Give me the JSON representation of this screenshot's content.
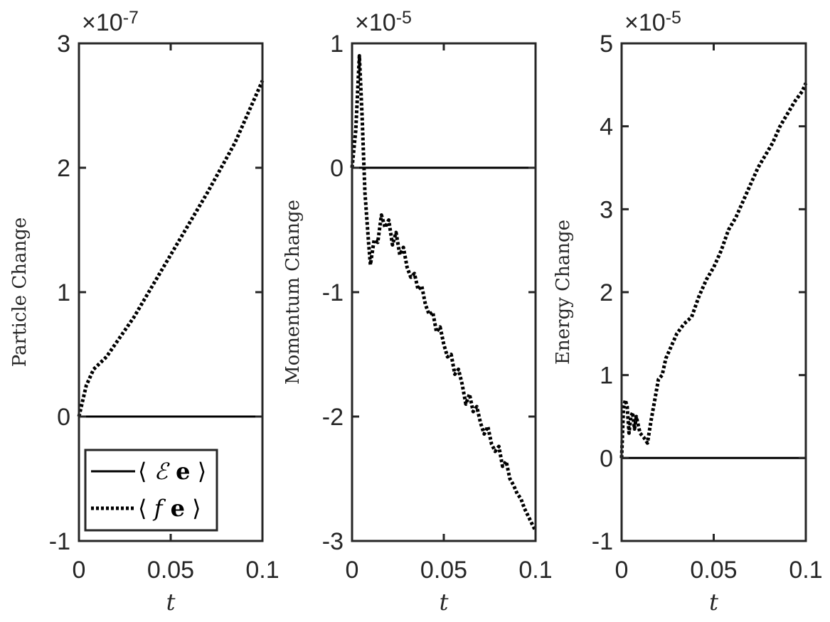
{
  "chart_data": [
    {
      "type": "line",
      "ylabel": "Particle Change",
      "xlabel": "t",
      "exponent": {
        "base": "×10",
        "power": "-7"
      },
      "xlim": [
        0,
        0.1
      ],
      "ylim": [
        -1,
        3
      ],
      "xticks": [
        "0",
        "0.05",
        "0.1"
      ],
      "yticks": [
        "-1",
        "0",
        "1",
        "2",
        "3"
      ],
      "ytick_values": [
        -1,
        0,
        1,
        2,
        3
      ],
      "xtick_values": [
        0,
        0.05,
        0.1
      ],
      "legend": {
        "placement": "bottom-left",
        "entries": [
          {
            "label_pre": "⟨ ",
            "label_ital": "ℰ",
            "label_bold": " e",
            "label_post": " ⟩",
            "style": "solid"
          },
          {
            "label_pre": "⟨ ",
            "label_ital": "f",
            "label_bold": " e",
            "label_post": " ⟩",
            "style": "dotted"
          }
        ]
      },
      "series": [
        {
          "style": "solid",
          "x": [
            0,
            0.1
          ],
          "y": [
            0,
            0
          ]
        },
        {
          "style": "dotted",
          "x": [
            0,
            0.004,
            0.008,
            0.015,
            0.03,
            0.05,
            0.07,
            0.085,
            0.1
          ],
          "y": [
            0,
            0.25,
            0.38,
            0.48,
            0.8,
            1.3,
            1.8,
            2.2,
            2.7
          ]
        }
      ]
    },
    {
      "type": "line",
      "ylabel": "Momentum Change",
      "xlabel": "t",
      "exponent": {
        "base": "×10",
        "power": "-5"
      },
      "xlim": [
        0,
        0.1
      ],
      "ylim": [
        -3,
        1
      ],
      "xticks": [
        "0",
        "0.05",
        "0.1"
      ],
      "yticks": [
        "-3",
        "-2",
        "-1",
        "0",
        "1"
      ],
      "ytick_values": [
        -3,
        -2,
        -1,
        0,
        1
      ],
      "xtick_values": [
        0,
        0.05,
        0.1
      ],
      "series": [
        {
          "style": "solid",
          "x": [
            0,
            0.1
          ],
          "y": [
            0,
            0
          ]
        },
        {
          "style": "dotted",
          "x": [
            0,
            0.002,
            0.004,
            0.0055,
            0.007,
            0.009,
            0.01,
            0.012,
            0.014,
            0.016,
            0.018,
            0.02,
            0.022,
            0.024,
            0.026,
            0.028,
            0.03,
            0.032,
            0.034,
            0.036,
            0.038,
            0.04,
            0.042,
            0.044,
            0.046,
            0.048,
            0.05,
            0.052,
            0.054,
            0.056,
            0.058,
            0.06,
            0.062,
            0.064,
            0.066,
            0.068,
            0.07,
            0.072,
            0.074,
            0.076,
            0.078,
            0.08,
            0.082,
            0.084,
            0.086,
            0.088,
            0.09,
            0.092,
            0.094,
            0.096,
            0.098,
            0.1
          ],
          "y": [
            0,
            0.3,
            0.9,
            0.4,
            -0.2,
            -0.6,
            -0.78,
            -0.58,
            -0.6,
            -0.38,
            -0.48,
            -0.42,
            -0.62,
            -0.52,
            -0.7,
            -0.64,
            -0.8,
            -0.88,
            -0.85,
            -0.98,
            -0.95,
            -1.1,
            -1.18,
            -1.16,
            -1.32,
            -1.28,
            -1.42,
            -1.52,
            -1.5,
            -1.66,
            -1.62,
            -1.74,
            -1.9,
            -1.82,
            -1.96,
            -1.92,
            -2.05,
            -2.14,
            -2.08,
            -2.22,
            -2.28,
            -2.24,
            -2.4,
            -2.36,
            -2.5,
            -2.55,
            -2.62,
            -2.66,
            -2.74,
            -2.8,
            -2.86,
            -2.92
          ]
        }
      ]
    },
    {
      "type": "line",
      "ylabel": "Energy Change",
      "xlabel": "t",
      "exponent": {
        "base": "×10",
        "power": "-5"
      },
      "xlim": [
        0,
        0.1
      ],
      "ylim": [
        -1,
        5
      ],
      "xticks": [
        "0",
        "0.05",
        "0.1"
      ],
      "yticks": [
        "-1",
        "0",
        "1",
        "2",
        "3",
        "4",
        "5"
      ],
      "ytick_values": [
        -1,
        0,
        1,
        2,
        3,
        4,
        5
      ],
      "xtick_values": [
        0,
        0.05,
        0.1
      ],
      "series": [
        {
          "style": "solid",
          "x": [
            0,
            0.1
          ],
          "y": [
            0,
            0
          ]
        },
        {
          "style": "dotted",
          "x": [
            0,
            0.001,
            0.002,
            0.003,
            0.004,
            0.005,
            0.006,
            0.007,
            0.008,
            0.009,
            0.01,
            0.012,
            0.014,
            0.016,
            0.018,
            0.02,
            0.022,
            0.024,
            0.026,
            0.028,
            0.03,
            0.034,
            0.038,
            0.042,
            0.046,
            0.05,
            0.054,
            0.058,
            0.062,
            0.066,
            0.07,
            0.074,
            0.078,
            0.082,
            0.086,
            0.09,
            0.094,
            0.098,
            0.1
          ],
          "y": [
            0,
            0.6,
            0.7,
            0.62,
            0.3,
            0.5,
            0.55,
            0.35,
            0.5,
            0.4,
            0.3,
            0.25,
            0.18,
            0.45,
            0.7,
            0.95,
            1.0,
            1.2,
            1.3,
            1.4,
            1.5,
            1.62,
            1.7,
            1.95,
            2.15,
            2.3,
            2.5,
            2.75,
            2.9,
            3.1,
            3.3,
            3.5,
            3.65,
            3.8,
            4.0,
            4.15,
            4.3,
            4.42,
            4.52
          ]
        }
      ]
    }
  ]
}
